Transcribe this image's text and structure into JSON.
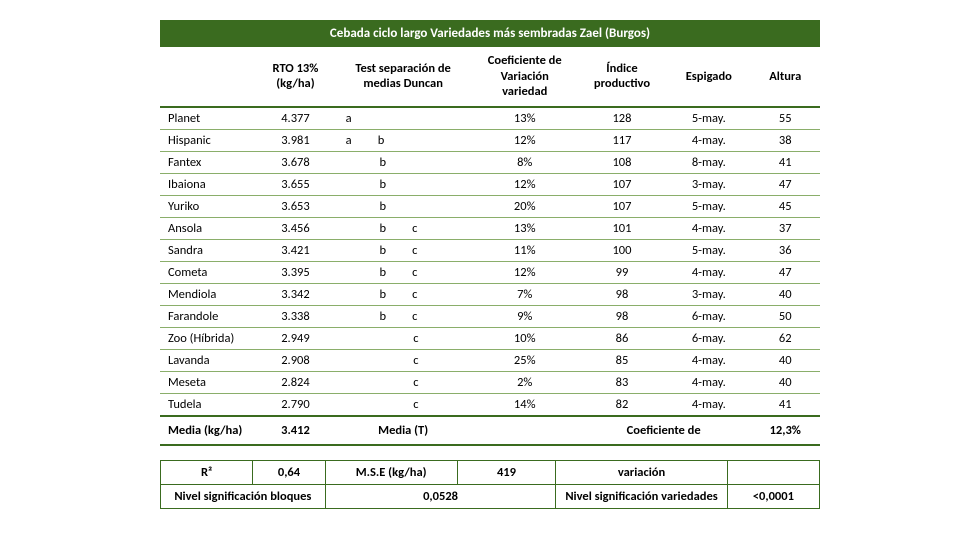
{
  "title": "Cebada ciclo largo Variedades más sembradas Zael (Burgos)",
  "columns": {
    "rto": "RTO 13% (kg/ha)",
    "duncan": "Test separación de medias Duncan",
    "cv": "Coeficiente de Variación variedad",
    "indice": "Índice productivo",
    "espigado": "Espigado",
    "altura": "Altura"
  },
  "rows": [
    {
      "name": "Planet",
      "rto": "4.377",
      "duncan": "a",
      "cv": "13%",
      "indice": "128",
      "espigado": "5-may.",
      "altura": "55"
    },
    {
      "name": "Hispanic",
      "rto": "3.981",
      "duncan": "a     b",
      "cv": "12%",
      "indice": "117",
      "espigado": "4-may.",
      "altura": "38"
    },
    {
      "name": "Fantex",
      "rto": "3.678",
      "duncan": "       b",
      "cv": "8%",
      "indice": "108",
      "espigado": "8-may.",
      "altura": "41"
    },
    {
      "name": "Ibaiona",
      "rto": "3.655",
      "duncan": "       b",
      "cv": "12%",
      "indice": "107",
      "espigado": "3-may.",
      "altura": "47"
    },
    {
      "name": "Yuriko",
      "rto": "3.653",
      "duncan": "       b",
      "cv": "20%",
      "indice": "107",
      "espigado": "5-may.",
      "altura": "45"
    },
    {
      "name": "Ansola",
      "rto": "3.456",
      "duncan": "       b     c",
      "cv": "13%",
      "indice": "101",
      "espigado": "4-may.",
      "altura": "37"
    },
    {
      "name": "Sandra",
      "rto": "3.421",
      "duncan": "       b     c",
      "cv": "11%",
      "indice": "100",
      "espigado": "5-may.",
      "altura": "36"
    },
    {
      "name": "Cometa",
      "rto": "3.395",
      "duncan": "       b     c",
      "cv": "12%",
      "indice": "99",
      "espigado": "4-may.",
      "altura": "47"
    },
    {
      "name": "Mendiola",
      "rto": "3.342",
      "duncan": "       b     c",
      "cv": "7%",
      "indice": "98",
      "espigado": "3-may.",
      "altura": "40"
    },
    {
      "name": "Farandole",
      "rto": "3.338",
      "duncan": "       b     c",
      "cv": "9%",
      "indice": "98",
      "espigado": "6-may.",
      "altura": "50"
    },
    {
      "name": "Zoo (Híbrida)",
      "rto": "2.949",
      "duncan": "              c",
      "cv": "10%",
      "indice": "86",
      "espigado": "6-may.",
      "altura": "62"
    },
    {
      "name": "Lavanda",
      "rto": "2.908",
      "duncan": "              c",
      "cv": "25%",
      "indice": "85",
      "espigado": "4-may.",
      "altura": "40"
    },
    {
      "name": "Meseta",
      "rto": "2.824",
      "duncan": "              c",
      "cv": "2%",
      "indice": "83",
      "espigado": "4-may.",
      "altura": "40"
    },
    {
      "name": "Tudela",
      "rto": "2.790",
      "duncan": "              c",
      "cv": "14%",
      "indice": "82",
      "espigado": "4-may.",
      "altura": "41"
    }
  ],
  "summary": {
    "media_label": "Media (kg/ha)",
    "media_value": "3.412",
    "media_t": "Media (T)",
    "coef_label": "Coeficiente de",
    "coef_value": "12,3%"
  },
  "stats": {
    "r2_label": "R²",
    "r2_value": "0,64",
    "mse_label": "M.S.E (kg/ha)",
    "mse_value": "419",
    "variacion": "variación",
    "sig_bloques_label": "Nivel significación bloques",
    "sig_bloques_value": "0,0528",
    "sig_var_label": "Nivel significación variedades",
    "sig_var_value": "<0,0001"
  }
}
